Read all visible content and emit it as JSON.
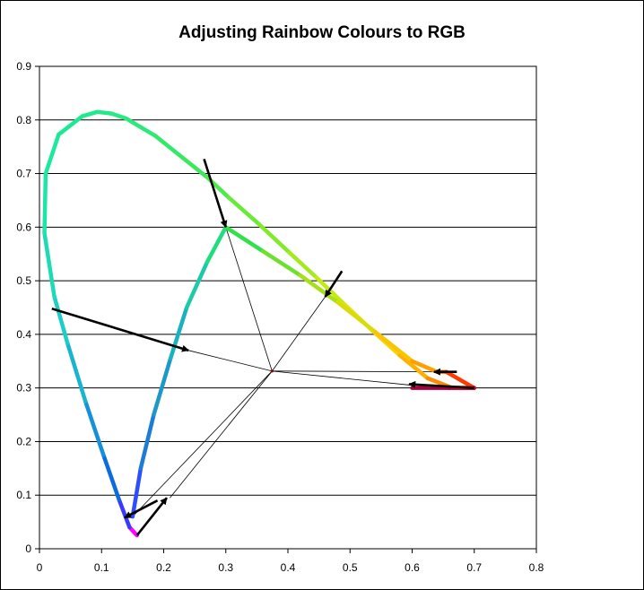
{
  "chart_data": {
    "type": "line",
    "title": "Adjusting Rainbow Colours to RGB",
    "xlabel": "",
    "ylabel": "",
    "xlim": [
      0,
      0.8
    ],
    "ylim": [
      0,
      0.9
    ],
    "xticks": [
      "0",
      "0.1",
      "0.2",
      "0.3",
      "0.4",
      "0.5",
      "0.6",
      "0.7",
      "0.8"
    ],
    "yticks": [
      "0",
      "0.1",
      "0.2",
      "0.3",
      "0.4",
      "0.5",
      "0.6",
      "0.7",
      "0.8",
      "0.9"
    ],
    "grid": "horizontal",
    "legend": "none",
    "white_point": [
      0.3745,
      0.3315
    ],
    "series": [
      {
        "kind": "spectral-locus",
        "x": [
          0.157,
          0.145,
          0.128,
          0.103,
          0.074,
          0.045,
          0.024,
          0.008,
          0.01,
          0.031,
          0.069,
          0.093,
          0.116,
          0.139,
          0.187,
          0.23,
          0.27,
          0.305,
          0.354,
          0.402,
          0.446,
          0.491,
          0.536,
          0.58,
          0.625,
          0.665,
          0.7
        ],
        "y": [
          0.025,
          0.04,
          0.092,
          0.175,
          0.275,
          0.384,
          0.47,
          0.589,
          0.7,
          0.773,
          0.807,
          0.815,
          0.812,
          0.803,
          0.77,
          0.73,
          0.693,
          0.655,
          0.605,
          0.553,
          0.506,
          0.456,
          0.407,
          0.361,
          0.318,
          0.3,
          0.3
        ],
        "colors": [
          "#ff00ff",
          "#3a38ff",
          "#0a6dde",
          "#1690d8",
          "#19b4cf",
          "#1ccfc4",
          "#1ddcb5",
          "#1ce6a8",
          "#1ce89e",
          "#1ce993",
          "#20e98c",
          "#22ea87",
          "#27ea83",
          "#2de97b",
          "#33e86a",
          "#3ae85c",
          "#4dea49",
          "#67ea3a",
          "#83ea2b",
          "#a3ea1f",
          "#c4ea14",
          "#e2e20c",
          "#fad206",
          "#ffb000",
          "#ff8c00",
          "#ff4a00",
          "#d8002e"
        ]
      },
      {
        "kind": "rgb-gamut",
        "x": [
          0.15,
          0.163,
          0.184,
          0.211,
          0.237,
          0.27,
          0.3,
          0.36,
          0.42,
          0.48,
          0.54,
          0.6,
          0.64,
          0.655,
          0.7,
          0.66,
          0.6
        ],
        "y": [
          0.06,
          0.15,
          0.25,
          0.355,
          0.45,
          0.535,
          0.6,
          0.555,
          0.51,
          0.46,
          0.405,
          0.35,
          0.33,
          0.33,
          0.3,
          0.3,
          0.3
        ],
        "colors": [
          "#2e4dff",
          "#1d7dd6",
          "#1d98c8",
          "#1ab2c0",
          "#1ccaa9",
          "#1ede80",
          "#32e04a",
          "#70e030",
          "#a6e01a",
          "#d9dc0c",
          "#f8c406",
          "#ffa000",
          "#ff7a00",
          "#ff3a00",
          "#cc0033",
          "#a80040",
          "#900048"
        ]
      },
      {
        "kind": "arrows",
        "arrows": [
          {
            "x1": 0.265,
            "y1": 0.727,
            "x2": 0.3,
            "y2": 0.6
          },
          {
            "x1": 0.487,
            "y1": 0.518,
            "x2": 0.46,
            "y2": 0.47
          },
          {
            "x1": 0.02,
            "y1": 0.448,
            "x2": 0.24,
            "y2": 0.37
          },
          {
            "x1": 0.672,
            "y1": 0.33,
            "x2": 0.635,
            "y2": 0.33
          },
          {
            "x1": 0.7,
            "y1": 0.3,
            "x2": 0.595,
            "y2": 0.307
          },
          {
            "x1": 0.157,
            "y1": 0.025,
            "x2": 0.205,
            "y2": 0.095
          },
          {
            "x1": 0.19,
            "y1": 0.09,
            "x2": 0.137,
            "y2": 0.058
          }
        ]
      },
      {
        "kind": "white-point-rays",
        "targets_x": [
          0.3,
          0.46,
          0.24,
          0.65,
          0.6,
          0.21,
          0.15
        ],
        "targets_y": [
          0.6,
          0.47,
          0.37,
          0.33,
          0.305,
          0.095,
          0.06
        ]
      }
    ]
  }
}
